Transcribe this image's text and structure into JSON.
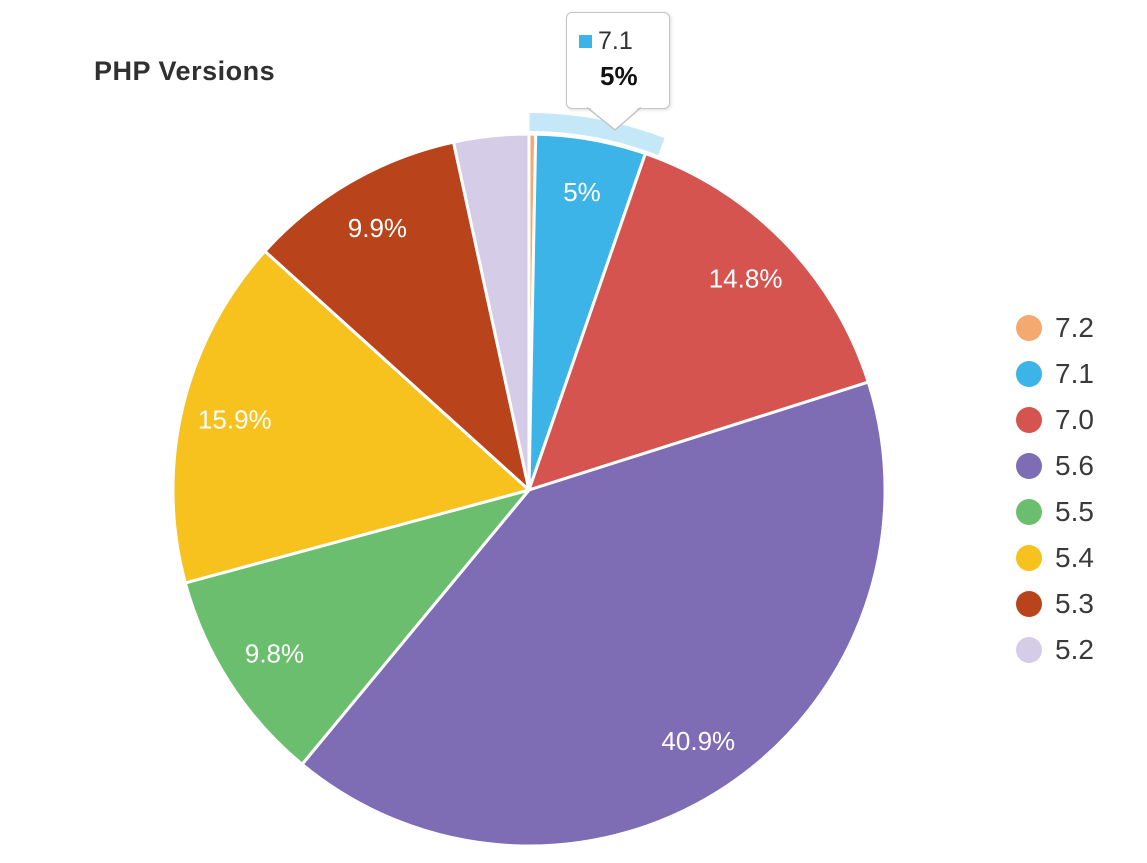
{
  "title": "PHP Versions",
  "chart_data": {
    "type": "pie",
    "title": "PHP Versions",
    "unit": "percent",
    "legend_position": "right",
    "label_position": "inside",
    "background": "#ffffff",
    "slice_border_color": "#ffffff",
    "slices": [
      {
        "name": "7.2",
        "value": 0.3,
        "color": "#f3a96f",
        "slice_label": ""
      },
      {
        "name": "7.1",
        "value": 5,
        "color": "#3cb4e7",
        "slice_label": "5%",
        "highlighted": true
      },
      {
        "name": "7.0",
        "value": 14.8,
        "color": "#d5544f",
        "slice_label": "14.8%"
      },
      {
        "name": "5.6",
        "value": 40.9,
        "color": "#7e6cb5",
        "slice_label": "40.9%"
      },
      {
        "name": "5.5",
        "value": 9.8,
        "color": "#6cbe6f",
        "slice_label": "9.8%"
      },
      {
        "name": "5.4",
        "value": 15.9,
        "color": "#f7c11e",
        "slice_label": "15.9%"
      },
      {
        "name": "5.3",
        "value": 9.9,
        "color": "#b9441b",
        "slice_label": "9.9%"
      },
      {
        "name": "5.2",
        "value": 3.4,
        "color": "#d5cde8",
        "slice_label": ""
      }
    ]
  },
  "tooltip": {
    "series_name": "7.1",
    "value_text": "5%",
    "marker_color": "#3cb4e7"
  }
}
